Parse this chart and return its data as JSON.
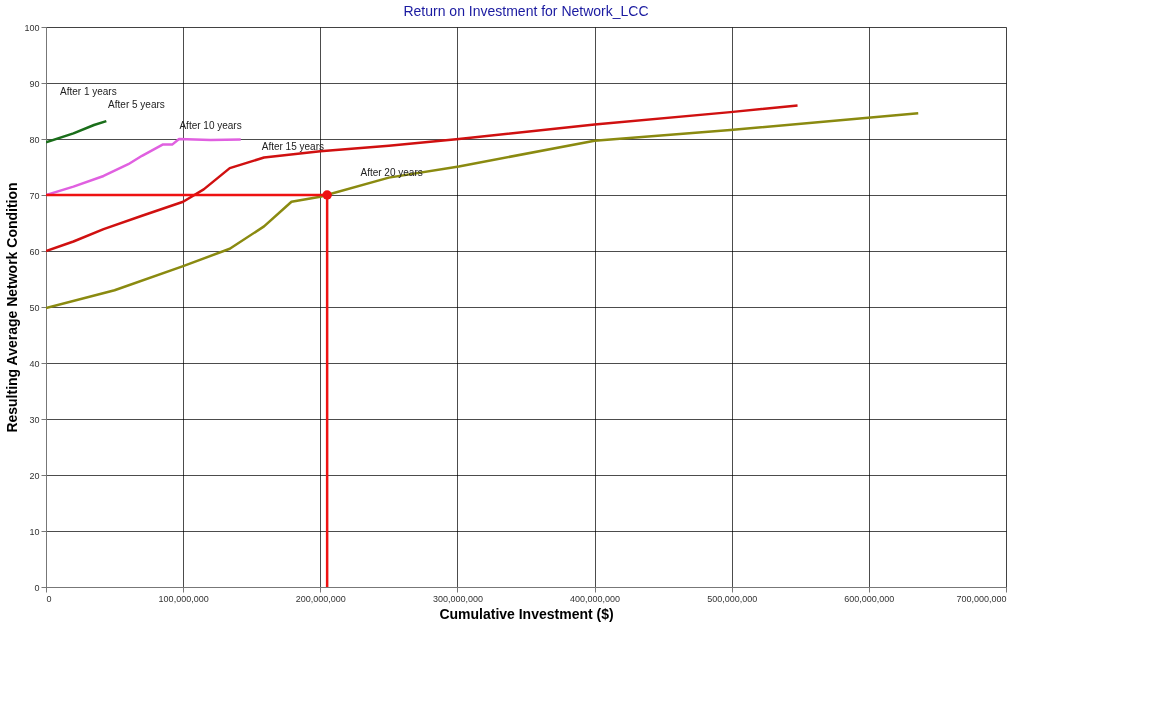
{
  "chart_data": {
    "type": "line",
    "title": "Return on Investment for Network_LCC",
    "xlabel": "Cumulative Investment ($)",
    "ylabel": "Resulting Average Network Condition",
    "xlim": [
      0,
      700000000
    ],
    "xticks": [
      0,
      {
        "value": 100000000,
        "label": "100,000,000"
      },
      {
        "value": 200000000,
        "label": "200,000,000"
      },
      {
        "value": 300000000,
        "label": "300,000,000"
      },
      {
        "value": 400000000,
        "label": "400,000,000"
      },
      {
        "value": 500000000,
        "label": "500,000,000"
      },
      {
        "value": 600000000,
        "label": "600,000,000"
      },
      {
        "value": 700000000,
        "label": "700,000,000"
      }
    ],
    "ylim": [
      0,
      100
    ],
    "yticks": [
      0,
      10,
      20,
      30,
      40,
      50,
      60,
      70,
      80,
      90,
      100
    ],
    "grid": true,
    "marker": "none",
    "line_style": "solid",
    "series": [
      {
        "color": "#1a6e1a",
        "x": [
          0,
          20000000,
          35000000,
          44000000
        ],
        "values": [
          79.4,
          81,
          82.5,
          83.2
        ]
      },
      {
        "color": "#e060e0",
        "x": [
          0,
          20000000,
          42000000,
          60000000,
          70000000,
          85000000,
          92000000,
          97000000,
          120000000,
          142000000
        ],
        "values": [
          70,
          71.5,
          73.4,
          75.5,
          77,
          79,
          79,
          80,
          79.8,
          79.9
        ]
      },
      {
        "color": "#d01010",
        "x": [
          0,
          20000000,
          42000000,
          70000000,
          100000000,
          115000000,
          134000000,
          159000000,
          200000000,
          250000000,
          301000000,
          400000000,
          499000000,
          548000000
        ],
        "values": [
          60,
          61.7,
          63.9,
          66.3,
          68.8,
          71,
          74.8,
          76.7,
          77.8,
          78.8,
          80,
          82.6,
          84.8,
          86
        ]
      },
      {
        "color": "#8a8a10",
        "x": [
          0,
          50000000,
          100000000,
          134000000,
          159000000,
          179000000,
          200000000,
          250000000,
          301000000,
          400000000,
          499000000,
          636000000
        ],
        "values": [
          49.8,
          53,
          57.3,
          60.4,
          64.4,
          68.8,
          69.7,
          73.1,
          75.1,
          79.7,
          81.6,
          84.6
        ]
      },
      {
        "color": "#ee1111",
        "x": [
          0,
          205000000,
          205000000
        ],
        "values": [
          70,
          70,
          0
        ]
      },
      {
        "type": "scatter",
        "marker": "circle",
        "color": "#ee1111",
        "x": [
          205000000
        ],
        "values": [
          70
        ]
      }
    ],
    "annotations": [
      "After 1 years",
      {
        "text": "After 5 years",
        "x": 38000000,
        "y": 83
      },
      {
        "text": "After 10 years",
        "x": 90000000,
        "y": 79.3
      },
      {
        "text": "After 15 years",
        "x": 150000000,
        "y": 75.5
      },
      {
        "text": "After 20 years",
        "x": 222000000,
        "y": 70.9
      }
    ]
  }
}
